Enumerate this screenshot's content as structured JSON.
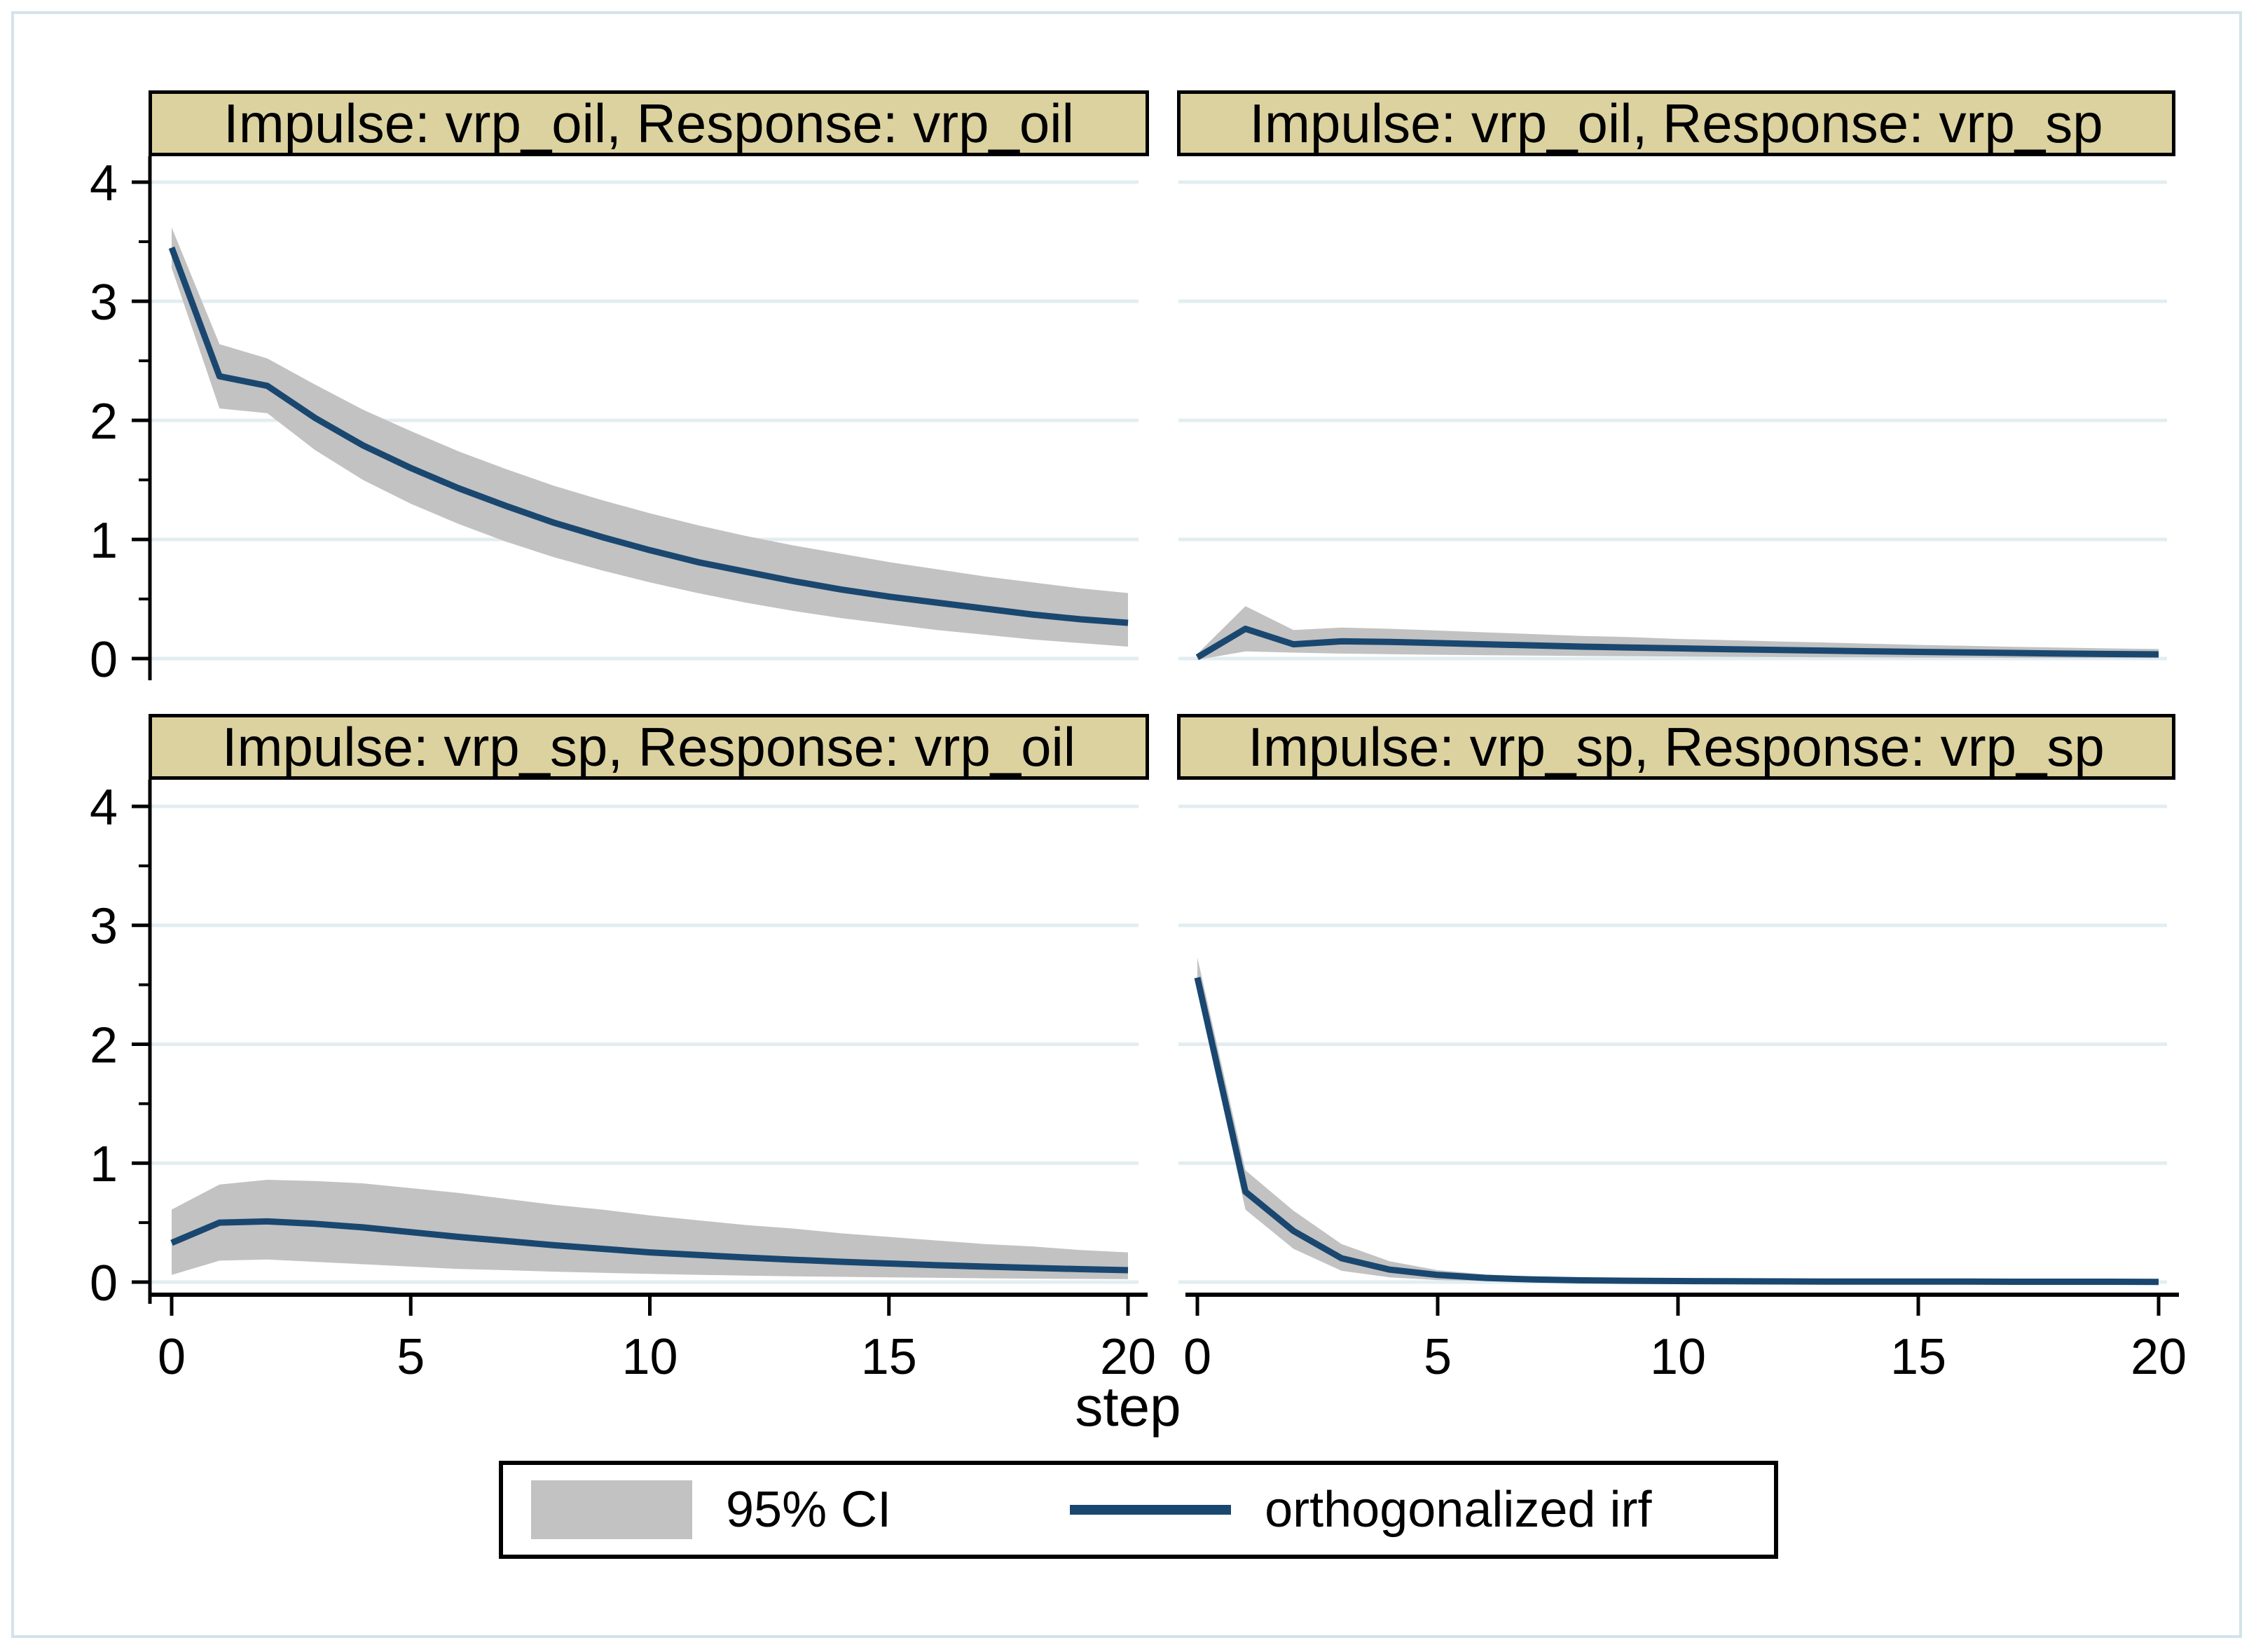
{
  "figure": {
    "xlabel": "step"
  },
  "legend": {
    "ci_label": "95% CI",
    "irf_label": "orthogonalized irf"
  },
  "colors": {
    "irf_line": "#1a476f",
    "ci_band": "#c2c2c2",
    "gridline": "#e3edf1",
    "title_bg": "#dcd29f",
    "axis": "#000000",
    "outer_border": "#d3e3ea"
  },
  "chart_data": [
    {
      "type": "area",
      "title": "Impulse: vrp_oil, Response: vrp_oil",
      "impulse": "vrp_oil",
      "response": "vrp_oil",
      "xlabel": "step",
      "xlim": [
        0,
        20
      ],
      "ylim": [
        -0.2,
        4.4
      ],
      "x_ticks": [
        0,
        5,
        10,
        15,
        20
      ],
      "y_ticks": [
        0,
        1,
        2,
        3,
        4
      ],
      "grid": true,
      "x": [
        0,
        1,
        2,
        3,
        4,
        5,
        6,
        7,
        8,
        9,
        10,
        11,
        12,
        13,
        14,
        15,
        16,
        17,
        18,
        19,
        20
      ],
      "irf": [
        3.45,
        2.37,
        2.29,
        2.02,
        1.79,
        1.6,
        1.43,
        1.28,
        1.14,
        1.02,
        0.91,
        0.81,
        0.73,
        0.65,
        0.58,
        0.52,
        0.47,
        0.42,
        0.37,
        0.33,
        0.3
      ],
      "ci_upper": [
        3.62,
        2.64,
        2.52,
        2.3,
        2.09,
        1.91,
        1.74,
        1.59,
        1.45,
        1.33,
        1.22,
        1.12,
        1.03,
        0.95,
        0.88,
        0.81,
        0.75,
        0.69,
        0.64,
        0.59,
        0.55
      ],
      "ci_lower": [
        3.28,
        2.1,
        2.06,
        1.75,
        1.5,
        1.3,
        1.13,
        0.98,
        0.85,
        0.74,
        0.64,
        0.55,
        0.47,
        0.4,
        0.34,
        0.29,
        0.24,
        0.2,
        0.16,
        0.13,
        0.1
      ]
    },
    {
      "type": "area",
      "title": "Impulse: vrp_oil, Response: vrp_sp",
      "impulse": "vrp_oil",
      "response": "vrp_sp",
      "xlabel": "step",
      "xlim": [
        0,
        20
      ],
      "ylim": [
        -0.2,
        4.4
      ],
      "x_ticks": [
        0,
        5,
        10,
        15,
        20
      ],
      "y_ticks": [
        0,
        1,
        2,
        3,
        4
      ],
      "grid": true,
      "x": [
        0,
        1,
        2,
        3,
        4,
        5,
        6,
        7,
        8,
        9,
        10,
        11,
        12,
        13,
        14,
        15,
        16,
        17,
        18,
        19,
        20
      ],
      "irf": [
        0.01,
        0.25,
        0.12,
        0.145,
        0.14,
        0.13,
        0.12,
        0.11,
        0.1,
        0.093,
        0.086,
        0.079,
        0.073,
        0.067,
        0.061,
        0.056,
        0.051,
        0.047,
        0.042,
        0.038,
        0.035
      ],
      "ci_upper": [
        0.04,
        0.44,
        0.24,
        0.26,
        0.25,
        0.235,
        0.22,
        0.205,
        0.19,
        0.18,
        0.165,
        0.155,
        0.145,
        0.135,
        0.125,
        0.115,
        0.107,
        0.099,
        0.092,
        0.085,
        0.08
      ],
      "ci_lower": [
        -0.01,
        0.06,
        0.05,
        0.042,
        0.037,
        0.032,
        0.028,
        0.025,
        0.022,
        0.019,
        0.017,
        0.015,
        0.013,
        0.011,
        0.01,
        0.008,
        0.007,
        0.006,
        0.005,
        0.004,
        0.004
      ]
    },
    {
      "type": "area",
      "title": "Impulse: vrp_sp, Response: vrp_oil",
      "impulse": "vrp_sp",
      "response": "vrp_oil",
      "xlabel": "step",
      "xlim": [
        0,
        20
      ],
      "ylim": [
        -0.2,
        4.4
      ],
      "x_ticks": [
        0,
        5,
        10,
        15,
        20
      ],
      "y_ticks": [
        0,
        1,
        2,
        3,
        4
      ],
      "grid": true,
      "x": [
        0,
        1,
        2,
        3,
        4,
        5,
        6,
        7,
        8,
        9,
        10,
        11,
        12,
        13,
        14,
        15,
        16,
        17,
        18,
        19,
        20
      ],
      "irf": [
        0.33,
        0.5,
        0.51,
        0.49,
        0.46,
        0.42,
        0.38,
        0.345,
        0.31,
        0.28,
        0.25,
        0.228,
        0.207,
        0.188,
        0.171,
        0.156,
        0.142,
        0.13,
        0.119,
        0.109,
        0.1
      ],
      "ci_upper": [
        0.61,
        0.82,
        0.86,
        0.85,
        0.83,
        0.79,
        0.75,
        0.7,
        0.65,
        0.61,
        0.56,
        0.52,
        0.48,
        0.45,
        0.41,
        0.38,
        0.35,
        0.32,
        0.3,
        0.27,
        0.25
      ],
      "ci_lower": [
        0.06,
        0.18,
        0.19,
        0.17,
        0.15,
        0.13,
        0.11,
        0.1,
        0.088,
        0.078,
        0.069,
        0.061,
        0.055,
        0.049,
        0.044,
        0.04,
        0.036,
        0.032,
        0.029,
        0.027,
        0.024
      ]
    },
    {
      "type": "area",
      "title": "Impulse: vrp_sp, Response: vrp_sp",
      "impulse": "vrp_sp",
      "response": "vrp_sp",
      "xlabel": "step",
      "xlim": [
        0,
        20
      ],
      "ylim": [
        -0.2,
        4.4
      ],
      "x_ticks": [
        0,
        5,
        10,
        15,
        20
      ],
      "y_ticks": [
        0,
        1,
        2,
        3,
        4
      ],
      "grid": true,
      "x": [
        0,
        1,
        2,
        3,
        4,
        5,
        6,
        7,
        8,
        9,
        10,
        11,
        12,
        13,
        14,
        15,
        16,
        17,
        18,
        19,
        20
      ],
      "irf": [
        2.56,
        0.76,
        0.43,
        0.2,
        0.105,
        0.06,
        0.035,
        0.022,
        0.015,
        0.011,
        0.009,
        0.007,
        0.006,
        0.005,
        0.005,
        0.004,
        0.004,
        0.003,
        0.003,
        0.003,
        0.002
      ],
      "ci_upper": [
        2.73,
        0.94,
        0.6,
        0.32,
        0.175,
        0.1,
        0.065,
        0.045,
        0.032,
        0.024,
        0.019,
        0.016,
        0.013,
        0.011,
        0.01,
        0.009,
        0.008,
        0.007,
        0.006,
        0.006,
        0.005
      ],
      "ci_lower": [
        2.48,
        0.61,
        0.28,
        0.095,
        0.04,
        0.017,
        0.009,
        0.005,
        0.003,
        0.002,
        0.001,
        0.001,
        0.001,
        0.0,
        0.0,
        0.0,
        0.0,
        0.0,
        0.0,
        0.0,
        0.0
      ]
    }
  ]
}
